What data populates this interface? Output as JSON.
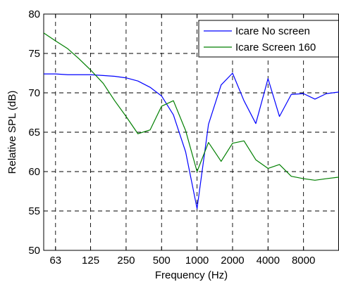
{
  "chart_data": {
    "type": "line",
    "xlabel": "Frequency (Hz)",
    "ylabel": "Relative SPL (dB)",
    "xscale": "log2",
    "xlim": [
      50,
      16000
    ],
    "ylim": [
      50,
      80
    ],
    "xticks": [
      63,
      125,
      250,
      500,
      1000,
      2000,
      4000,
      8000
    ],
    "xtick_labels": [
      "63",
      "125",
      "250",
      "500",
      "1000",
      "2000",
      "4000",
      "8000"
    ],
    "yticks": [
      50,
      55,
      60,
      65,
      70,
      75,
      80
    ],
    "ytick_labels": [
      "50",
      "55",
      "60",
      "65",
      "70",
      "75",
      "80"
    ],
    "grid": true,
    "legend_position": "top-right",
    "series": [
      {
        "name": "Icare No screen",
        "color": "#0000ff",
        "x": [
          50,
          63,
          80,
          100,
          125,
          160,
          200,
          250,
          315,
          400,
          500,
          630,
          800,
          1000,
          1250,
          1600,
          2000,
          2500,
          3150,
          4000,
          5000,
          6300,
          8000,
          10000,
          12500,
          16000
        ],
        "y": [
          72.4,
          72.4,
          72.3,
          72.3,
          72.3,
          72.2,
          72.1,
          71.9,
          71.5,
          70.7,
          69.6,
          67.2,
          62.5,
          55.3,
          66.0,
          71.0,
          72.5,
          69.0,
          66.1,
          71.8,
          67.0,
          69.8,
          69.9,
          69.2,
          69.9,
          70.1
        ]
      },
      {
        "name": "Icare Screen 160",
        "color": "#007f00",
        "x": [
          50,
          63,
          80,
          100,
          125,
          160,
          200,
          250,
          315,
          400,
          500,
          630,
          800,
          1000,
          1250,
          1600,
          2000,
          2500,
          3150,
          4000,
          5000,
          6300,
          8000,
          10000,
          12500,
          16000
        ],
        "y": [
          77.6,
          76.6,
          75.6,
          74.3,
          72.9,
          71.2,
          69.0,
          67.0,
          64.8,
          65.3,
          68.3,
          69.0,
          65.2,
          60.0,
          63.7,
          61.3,
          63.6,
          63.9,
          61.5,
          60.4,
          60.9,
          59.4,
          59.1,
          58.9,
          59.1,
          59.3
        ]
      }
    ]
  }
}
